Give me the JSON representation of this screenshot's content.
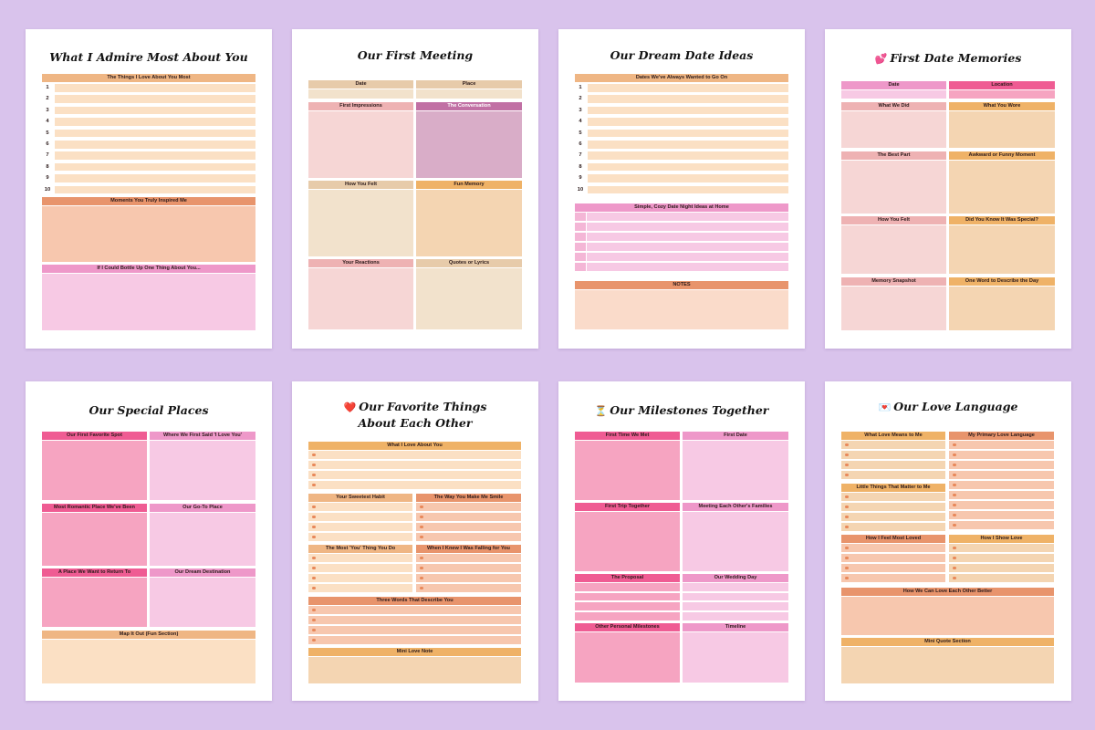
{
  "colors": {
    "background": "#d9c3ec",
    "orange_header": "#efb684",
    "orange_light": "#fbe0c4",
    "coral_header": "#e8946c",
    "coral_light": "#f7c7ae",
    "pink_header": "#ee98c9",
    "pink_light": "#f7c9e4",
    "hotpink_header": "#ef5c93",
    "hotpink_light": "#f6a4c1",
    "mauve_header": "#c170a4",
    "mauve_light": "#d9adc8",
    "rose_header": "#eeb2b3",
    "rose_light": "#f6d6d5",
    "tan_header": "#e7cbaa",
    "tan_light": "#f2e2cc",
    "peach_header": "#efb267",
    "peach_light": "#f4d5b2"
  },
  "pages": [
    {
      "title": "What I Admire Most About You",
      "sections": [
        "The Things I Love About You Most",
        "Moments You Truly Inspired Me",
        "If I Could Bottle Up One Thing About You..."
      ],
      "numbers": [
        "1",
        "2",
        "3",
        "4",
        "5",
        "6",
        "7",
        "8",
        "9",
        "10"
      ]
    },
    {
      "title": "Our First Meeting",
      "sections": [
        "Date",
        "Place",
        "First Impressions",
        "The Conversation",
        "How You Felt",
        "Fun Memory",
        "Your Reactions",
        "Quotes or Lyrics"
      ]
    },
    {
      "title": "Our Dream Date Ideas",
      "sections": [
        "Dates We've Always Wanted to Go On",
        "Simple, Cozy Date Night Ideas at Home",
        "NOTES"
      ],
      "numbers": [
        "1",
        "2",
        "3",
        "4",
        "5",
        "6",
        "7",
        "8",
        "9",
        "10"
      ]
    },
    {
      "title": "First Date Memories",
      "icon": "heart-icon",
      "emoji": "💕",
      "sections": [
        "Date",
        "Location",
        "What We Did",
        "What You Wore",
        "The Best Part",
        "Awkward or Funny Moment",
        "How You Felt",
        "Did You Know It Was Special?",
        "Memory Snapshot",
        "One Word to Describe the Day"
      ]
    },
    {
      "title": "Our Special Places",
      "sections": [
        "Our First Favorite Spot",
        "Where We First Said 'I Love You'",
        "Most Romantic Place We've Been",
        "Our Go-To Place",
        "A Place We Want to Return To",
        "Our Dream Destination",
        "Map It Out (Fun Section)"
      ]
    },
    {
      "title_line1": "Our Favorite Things",
      "title_line2": "About Each Other",
      "icon": "heart-icon",
      "emoji": "❤️",
      "sections": [
        "What I Love About You",
        "Your Sweetest Habit",
        "The Way You Make Me Smile",
        "The Most 'You' Thing You Do",
        "When I Knew I Was Falling for You",
        "Three Words That Describe You",
        "Mini Love Note"
      ]
    },
    {
      "title": "Our Milestones Together",
      "icon": "hourglass-icon",
      "emoji": "⏳",
      "sections": [
        "First Time We Met",
        "First Date",
        "First Trip Together",
        "Meeting Each Other's Families",
        "The Proposal",
        "Our Wedding Day",
        "Other Personal Milestones",
        "Timeline"
      ]
    },
    {
      "title": "Our Love Language",
      "icon": "love-letter-icon",
      "emoji": "💌",
      "sections": [
        "What Love Means to Me",
        "My Primary Love Language",
        "Little Things That Matter to Me",
        "How I Feel Most Loved",
        "How I Show Love",
        "How We Can Love Each Other Better",
        "Mini Quote Section"
      ]
    }
  ]
}
